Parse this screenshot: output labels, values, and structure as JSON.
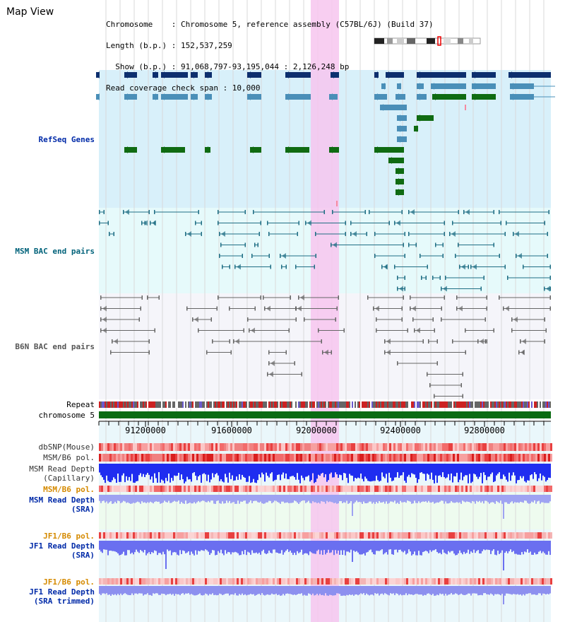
{
  "page": {
    "title": "Map View"
  },
  "header": {
    "chromosome": "Chromosome    : Chromosome 5, reference assembly (C57BL/6J) (Build 37)",
    "length": "Length (b.p.) : 152,537,259",
    "show": "  Show (b.p.) : 91,068,797-93,195,044 : 2,126,248 bp",
    "coverage": "Read coverage check span : 10,000"
  },
  "tracks": {
    "refseq": "RefSeq Genes",
    "msm_bac": "MSM BAC end pairs",
    "b6n_bac": "B6N BAC end pairs",
    "repeat": "Repeat",
    "chromosome": "chromosome 5",
    "dbsnp": "dbSNP(Mouse)",
    "msm_b6_pol": "MSM/B6 pol.",
    "msm_depth_cap_1": "MSM Read Depth",
    "msm_depth_cap_2": "(Capillary)",
    "msm_b6_pol_2": "MSM/B6 pol.",
    "msm_depth_sra_1": "MSM Read Depth",
    "msm_depth_sra_2": "(SRA)",
    "jf1_b6_pol": "JF1/B6 pol.",
    "jf1_depth_sra_1": "JF1 Read Depth",
    "jf1_depth_sra_2": "(SRA)",
    "jf1_b6_pol_2": "JF1/B6 pol.",
    "jf1_trim_1": "JF1 Read Depth",
    "jf1_trim_2": "(SRA trimmed)"
  },
  "ruler": {
    "ticks": [
      "91200000",
      "91600000",
      "92000000",
      "92400000",
      "92800000"
    ]
  },
  "colors": {
    "refseq_bg": "#d8f0fa",
    "msm_bg": "#e6fafb",
    "b6n_bg": "#f5f5fa",
    "gene_dark": "#0d2f6e",
    "gene_mid": "#4a8fb8",
    "gene_green": "#0f6b12",
    "msm_line": "#1f6e84",
    "b6n_line": "#666666",
    "highlight": "#f7c6ee",
    "label_blue": "#002aa8",
    "label_teal": "#00627a",
    "label_orange": "#d58a00"
  }
}
